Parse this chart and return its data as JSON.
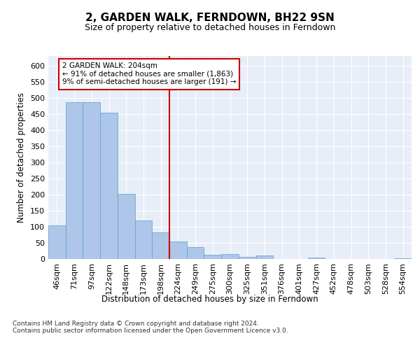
{
  "title": "2, GARDEN WALK, FERNDOWN, BH22 9SN",
  "subtitle": "Size of property relative to detached houses in Ferndown",
  "xlabel": "Distribution of detached houses by size in Ferndown",
  "ylabel": "Number of detached properties",
  "categories": [
    "46sqm",
    "71sqm",
    "97sqm",
    "122sqm",
    "148sqm",
    "173sqm",
    "198sqm",
    "224sqm",
    "249sqm",
    "275sqm",
    "300sqm",
    "325sqm",
    "351sqm",
    "376sqm",
    "401sqm",
    "427sqm",
    "452sqm",
    "478sqm",
    "503sqm",
    "528sqm",
    "554sqm"
  ],
  "values": [
    105,
    487,
    487,
    453,
    202,
    120,
    83,
    55,
    38,
    14,
    15,
    7,
    10,
    0,
    0,
    5,
    0,
    0,
    0,
    0,
    3
  ],
  "bar_color": "#aec6e8",
  "bar_edge_color": "#5a9ed6",
  "vline_x_index": 6.5,
  "vline_color": "#cc0000",
  "annotation_text": "2 GARDEN WALK: 204sqm\n← 91% of detached houses are smaller (1,863)\n9% of semi-detached houses are larger (191) →",
  "annotation_box_color": "#ffffff",
  "annotation_box_edge": "#cc0000",
  "footer_text": "Contains HM Land Registry data © Crown copyright and database right 2024.\nContains public sector information licensed under the Open Government Licence v3.0.",
  "ylim": [
    0,
    630
  ],
  "yticks": [
    0,
    50,
    100,
    150,
    200,
    250,
    300,
    350,
    400,
    450,
    500,
    550,
    600
  ],
  "background_color": "#e8eef8",
  "grid_color": "#ffffff",
  "title_fontsize": 11,
  "subtitle_fontsize": 9,
  "axis_label_fontsize": 8.5,
  "tick_fontsize": 8,
  "footer_fontsize": 6.5,
  "annotation_fontsize": 7.5
}
